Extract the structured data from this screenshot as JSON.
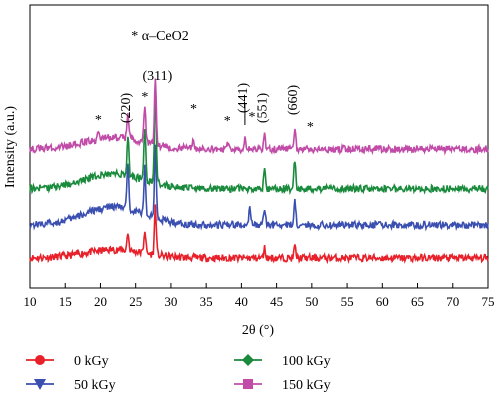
{
  "chart_data": {
    "type": "line",
    "title": "",
    "xlabel": "2θ (°)",
    "ylabel": "Intensity (a.u.)",
    "xlim": [
      10,
      75
    ],
    "xticks": [
      10,
      15,
      20,
      25,
      30,
      35,
      40,
      45,
      50,
      55,
      60,
      65,
      70,
      75
    ],
    "grid": false,
    "legend_position": "bottom",
    "annotations": {
      "phase_note": "* α–CeO2",
      "peak_labels": [
        {
          "text": "(220)",
          "x": 23.9
        },
        {
          "text": "(311)",
          "x": 27.8
        },
        {
          "text": "(441)",
          "x": 40.5
        },
        {
          "text": "(551)",
          "x": 43.3
        },
        {
          "text": "(660)",
          "x": 47.6
        }
      ],
      "star_positions": [
        19.7,
        26.3,
        33.2,
        38.0,
        41.5,
        49.8
      ]
    },
    "series": [
      {
        "name": "0 kGy",
        "color": "#e8202a",
        "marker": "circle",
        "baseline": 0.0,
        "hump": 0.25,
        "peaks": [
          [
            23.9,
            0.55
          ],
          [
            26.3,
            0.7
          ],
          [
            27.8,
            1.5
          ],
          [
            43.3,
            0.3
          ],
          [
            47.6,
            0.35
          ]
        ]
      },
      {
        "name": "50 kGy",
        "color": "#3a4fb0",
        "marker": "triangle-down",
        "baseline": 1.0,
        "hump": 0.55,
        "peaks": [
          [
            23.9,
            1.4
          ],
          [
            26.3,
            1.4
          ],
          [
            27.8,
            2.2
          ],
          [
            41.2,
            0.5
          ],
          [
            43.3,
            0.5
          ],
          [
            47.6,
            0.8
          ]
        ]
      },
      {
        "name": "100 kGy",
        "color": "#1a8a3c",
        "marker": "diamond",
        "baseline": 2.1,
        "hump": 0.45,
        "peaks": [
          [
            23.9,
            1.2
          ],
          [
            26.3,
            1.5
          ],
          [
            27.8,
            2.9
          ],
          [
            43.3,
            0.6
          ],
          [
            47.6,
            0.9
          ]
        ]
      },
      {
        "name": "150 kGy",
        "color": "#c04ca8",
        "marker": "square",
        "baseline": 3.3,
        "hump": 0.35,
        "peaks": [
          [
            19.7,
            0.3
          ],
          [
            23.9,
            0.8
          ],
          [
            26.3,
            1.1
          ],
          [
            27.8,
            2.0
          ],
          [
            33.2,
            0.3
          ],
          [
            38.0,
            0.2
          ],
          [
            40.5,
            0.35
          ],
          [
            43.3,
            0.4
          ],
          [
            47.6,
            0.55
          ]
        ]
      }
    ]
  }
}
